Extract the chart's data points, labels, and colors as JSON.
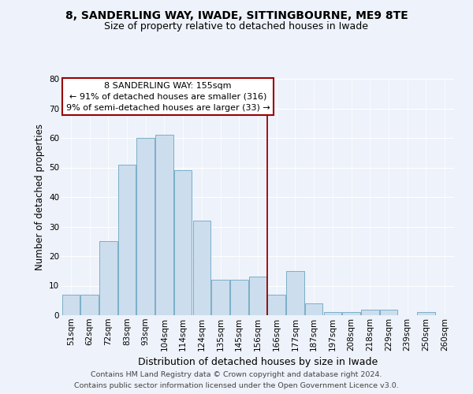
{
  "title1": "8, SANDERLING WAY, IWADE, SITTINGBOURNE, ME9 8TE",
  "title2": "Size of property relative to detached houses in Iwade",
  "xlabel": "Distribution of detached houses by size in Iwade",
  "ylabel": "Number of detached properties",
  "bar_labels": [
    "51sqm",
    "62sqm",
    "72sqm",
    "83sqm",
    "93sqm",
    "104sqm",
    "114sqm",
    "124sqm",
    "135sqm",
    "145sqm",
    "156sqm",
    "166sqm",
    "177sqm",
    "187sqm",
    "197sqm",
    "208sqm",
    "218sqm",
    "229sqm",
    "239sqm",
    "250sqm",
    "260sqm"
  ],
  "bar_values": [
    7,
    7,
    25,
    51,
    60,
    61,
    49,
    32,
    12,
    12,
    13,
    7,
    15,
    4,
    1,
    1,
    2,
    2,
    0,
    1,
    0
  ],
  "bar_color": "#ccdded",
  "bar_edge_color": "#7aafc8",
  "vline_x": 10.5,
  "vline_color": "#990000",
  "annotation_text": "8 SANDERLING WAY: 155sqm\n← 91% of detached houses are smaller (316)\n9% of semi-detached houses are larger (33) →",
  "annotation_box_color": "#ffffff",
  "annotation_box_edge": "#990000",
  "ylim": [
    0,
    80
  ],
  "yticks": [
    0,
    10,
    20,
    30,
    40,
    50,
    60,
    70,
    80
  ],
  "footer1": "Contains HM Land Registry data © Crown copyright and database right 2024.",
  "footer2": "Contains public sector information licensed under the Open Government Licence v3.0.",
  "bg_color": "#eef2fa",
  "grid_color": "#ffffff",
  "title1_fontsize": 10,
  "title2_fontsize": 9,
  "xlabel_fontsize": 9,
  "ylabel_fontsize": 8.5,
  "tick_fontsize": 7.5,
  "annotation_fontsize": 8,
  "footer_fontsize": 6.8
}
